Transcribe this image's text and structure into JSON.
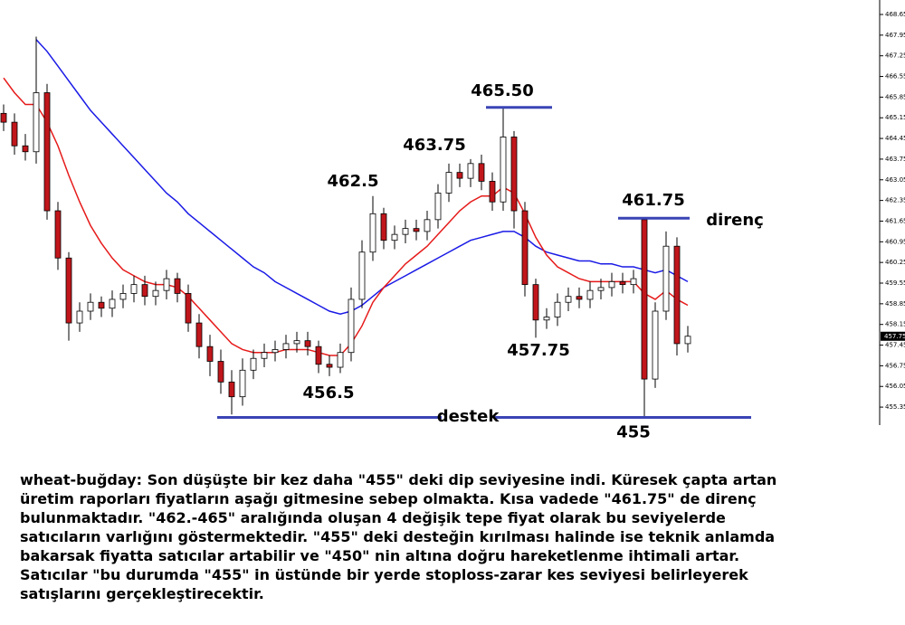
{
  "chart_data": {
    "type": "candlestick",
    "up_color": "#ffffff",
    "down_color": "#c0161b",
    "open": [
      465.3,
      465.0,
      464.2,
      464.0,
      466.0,
      462.0,
      460.4,
      458.2,
      458.6,
      458.9,
      458.7,
      459.0,
      459.2,
      459.5,
      459.1,
      459.3,
      459.7,
      459.2,
      458.2,
      457.4,
      456.9,
      456.2,
      455.7,
      456.6,
      457.0,
      457.2,
      457.3,
      457.5,
      457.6,
      457.4,
      456.8,
      456.7,
      457.2,
      459.0,
      460.6,
      461.9,
      461.0,
      461.2,
      461.4,
      461.3,
      461.7,
      462.6,
      463.3,
      463.1,
      463.6,
      463.0,
      462.3,
      464.5,
      462.0,
      459.5,
      458.3,
      458.4,
      458.9,
      459.1,
      459.0,
      459.3,
      459.4,
      459.6,
      459.5,
      461.7,
      456.3,
      458.6,
      460.8,
      457.5
    ],
    "high": [
      465.6,
      465.3,
      464.6,
      467.9,
      466.3,
      462.3,
      460.6,
      458.9,
      459.2,
      459.1,
      459.3,
      459.5,
      459.8,
      459.8,
      459.6,
      460.0,
      459.9,
      459.5,
      458.5,
      457.8,
      457.3,
      456.6,
      457.0,
      457.3,
      457.5,
      457.6,
      457.8,
      457.9,
      457.9,
      457.6,
      457.1,
      457.5,
      459.4,
      461.0,
      462.5,
      462.1,
      461.5,
      461.7,
      461.7,
      462.0,
      462.9,
      463.6,
      463.6,
      463.75,
      463.9,
      463.3,
      465.5,
      464.7,
      462.3,
      459.7,
      458.7,
      459.2,
      459.4,
      459.4,
      459.6,
      459.7,
      459.9,
      459.9,
      460.0,
      461.75,
      458.9,
      461.3,
      461.1,
      458.1
    ],
    "low": [
      464.7,
      463.9,
      463.7,
      463.6,
      461.7,
      460.0,
      457.6,
      457.9,
      458.3,
      458.4,
      458.4,
      458.7,
      458.9,
      458.8,
      458.8,
      459.0,
      458.9,
      457.9,
      457.0,
      456.4,
      455.8,
      455.1,
      455.4,
      456.3,
      456.7,
      456.9,
      457.0,
      457.2,
      457.1,
      456.5,
      456.4,
      456.5,
      456.9,
      458.7,
      460.3,
      460.7,
      460.7,
      460.9,
      461.0,
      461.0,
      461.4,
      462.3,
      462.8,
      462.8,
      462.7,
      462.0,
      462.0,
      461.4,
      459.1,
      457.7,
      458.0,
      458.1,
      458.6,
      458.7,
      458.7,
      459.0,
      459.1,
      459.2,
      459.2,
      455.0,
      456.0,
      458.3,
      457.1,
      457.2
    ],
    "close": [
      465.0,
      464.2,
      464.0,
      466.0,
      462.0,
      460.4,
      458.2,
      458.6,
      458.9,
      458.7,
      459.0,
      459.2,
      459.5,
      459.1,
      459.3,
      459.7,
      459.2,
      458.2,
      457.4,
      456.9,
      456.2,
      455.7,
      456.6,
      457.0,
      457.2,
      457.3,
      457.5,
      457.6,
      457.4,
      456.8,
      456.7,
      457.2,
      459.0,
      460.6,
      461.9,
      461.0,
      461.2,
      461.4,
      461.3,
      461.7,
      462.6,
      463.3,
      463.1,
      463.6,
      463.0,
      462.3,
      464.5,
      462.0,
      459.5,
      458.3,
      458.4,
      458.9,
      459.1,
      459.0,
      459.3,
      459.4,
      459.6,
      459.5,
      459.7,
      456.3,
      458.6,
      460.8,
      457.5,
      457.75
    ],
    "lines": [
      {
        "color": "#1a1ae6",
        "values": [
          null,
          null,
          null,
          467.8,
          467.4,
          466.9,
          466.4,
          465.9,
          465.4,
          465.0,
          464.6,
          464.2,
          463.8,
          463.4,
          463.0,
          462.6,
          462.3,
          461.9,
          461.6,
          461.3,
          461.0,
          460.7,
          460.4,
          460.1,
          459.9,
          459.6,
          459.4,
          459.2,
          459.0,
          458.8,
          458.6,
          458.5,
          458.6,
          458.8,
          459.1,
          459.4,
          459.6,
          459.8,
          460.0,
          460.2,
          460.4,
          460.6,
          460.8,
          461.0,
          461.1,
          461.2,
          461.3,
          461.3,
          461.1,
          460.8,
          460.6,
          460.5,
          460.4,
          460.3,
          460.3,
          460.2,
          460.2,
          460.1,
          460.1,
          460.0,
          459.9,
          460.0,
          459.8,
          459.6
        ]
      },
      {
        "color": "#e61a1a",
        "values": [
          466.5,
          466.0,
          465.6,
          465.6,
          465.0,
          464.2,
          463.2,
          462.3,
          461.5,
          460.9,
          460.4,
          460.0,
          459.8,
          459.6,
          459.5,
          459.5,
          459.4,
          459.1,
          458.7,
          458.3,
          457.9,
          457.5,
          457.3,
          457.2,
          457.2,
          457.2,
          457.3,
          457.3,
          457.3,
          457.2,
          457.1,
          457.1,
          457.5,
          458.1,
          458.9,
          459.4,
          459.8,
          460.2,
          460.5,
          460.8,
          461.2,
          461.6,
          462.0,
          462.3,
          462.5,
          462.5,
          462.8,
          462.6,
          461.9,
          461.1,
          460.5,
          460.1,
          459.9,
          459.7,
          459.6,
          459.6,
          459.6,
          459.6,
          459.6,
          459.2,
          459.0,
          459.3,
          459.0,
          458.8
        ]
      }
    ],
    "ylim": [
      454.74,
      469.14
    ],
    "yticks": [
      468.65,
      467.95,
      467.25,
      466.55,
      465.85,
      465.15,
      464.45,
      463.75,
      463.05,
      462.35,
      461.65,
      460.95,
      460.25,
      459.55,
      458.85,
      458.15,
      457.45,
      456.75,
      456.05,
      455.35
    ],
    "last_price": 457.75,
    "levels": [
      {
        "value": 465.5,
        "label": "465.50"
      },
      {
        "value": 461.75,
        "label": "461.75"
      },
      {
        "value": 455,
        "label": "455"
      }
    ],
    "level_color": "#3a44b5",
    "notes": [
      "462.5",
      "463.75",
      "456.5",
      "457.75",
      "direnç",
      "destek"
    ]
  },
  "text": {
    "paragraph": [
      "wheat-buğday: Son düşüşte bir kez daha \"455\" deki dip seviyesine indi. Küresek çapta artan",
      "üretim raporları fiyatların aşağı gitmesine sebep olmakta. Kısa vadede \"461.75\" de direnç",
      "bulunmaktadır. \"462.-465\" aralığında oluşan 4 değişik tepe fiyat olarak bu seviyelerde",
      "satıcıların varlığını göstermektedir. \"455\" deki desteğin kırılması halinde ise teknik anlamda",
      "bakarsak fiyatta satıcılar artabilir ve \"450\" nin altına doğru hareketlenme ihtimali artar.",
      "Satıcılar \"bu durumda \"455\" in üstünde bir yerde stoploss-zarar kes seviyesi belirleyerek",
      "satışlarını gerçekleştirecektir."
    ]
  }
}
